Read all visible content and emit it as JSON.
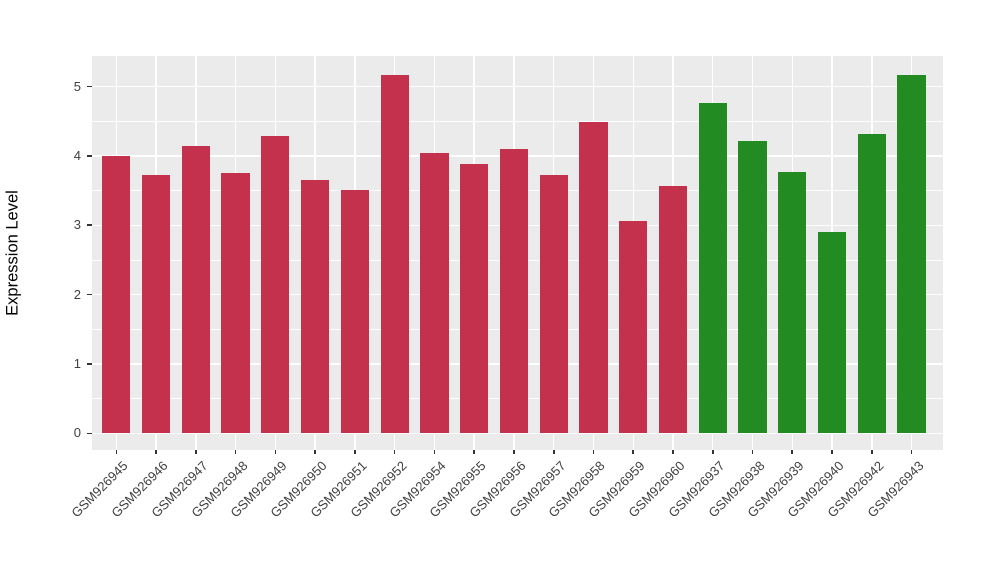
{
  "chart_data": {
    "type": "bar",
    "title": "",
    "xlabel": "",
    "ylabel": "Expression Level",
    "categories": [
      "GSM926945",
      "GSM926946",
      "GSM926947",
      "GSM926948",
      "GSM926949",
      "GSM926950",
      "GSM926951",
      "GSM926952",
      "GSM926954",
      "GSM926955",
      "GSM926956",
      "GSM926957",
      "GSM926958",
      "GSM926959",
      "GSM926960",
      "GSM926937",
      "GSM926938",
      "GSM926939",
      "GSM926940",
      "GSM926942",
      "GSM926943"
    ],
    "values": [
      4.0,
      3.73,
      4.14,
      3.76,
      4.29,
      3.66,
      3.51,
      5.17,
      4.04,
      3.88,
      4.1,
      3.72,
      4.49,
      3.06,
      3.56,
      4.76,
      4.21,
      3.77,
      2.9,
      4.31,
      5.17
    ],
    "bar_groups": [
      "red",
      "red",
      "red",
      "red",
      "red",
      "red",
      "red",
      "red",
      "red",
      "red",
      "red",
      "red",
      "red",
      "red",
      "red",
      "green",
      "green",
      "green",
      "green",
      "green",
      "green"
    ],
    "group_colors": {
      "red": "#C3314D",
      "green": "#228B22"
    },
    "yticks": [
      0,
      1,
      2,
      3,
      4,
      5
    ],
    "minor_yticks": [
      0.5,
      1.5,
      2.5,
      3.5,
      4.5
    ],
    "ylim": [
      0,
      5.44
    ],
    "grid": "on",
    "legend_position": "none",
    "panel_background": "#EBEBEB",
    "grid_color": "#FFFFFF",
    "axis_text_color": "#404040",
    "tick_color": "#333333"
  }
}
